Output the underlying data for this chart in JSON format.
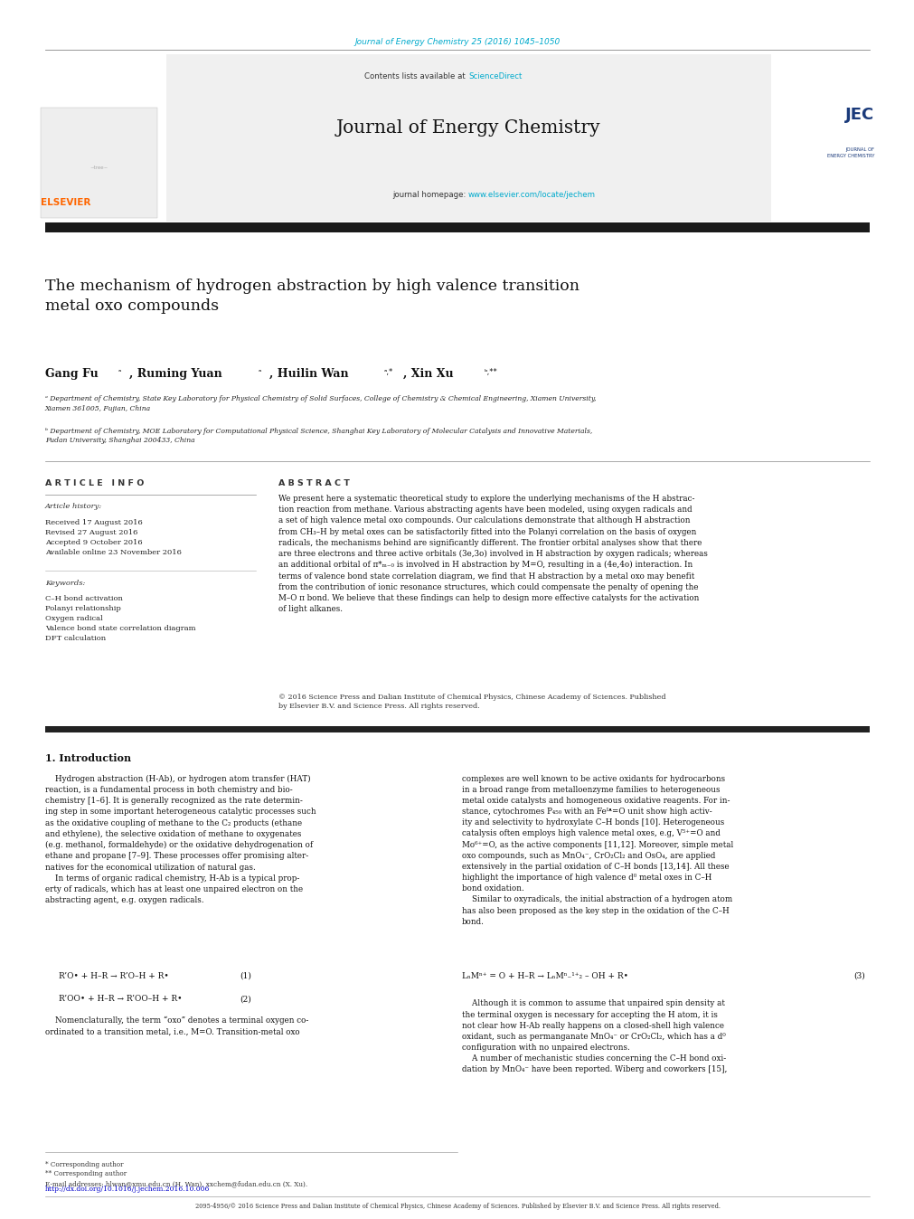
{
  "page_width": 9.92,
  "page_height": 13.23,
  "bg_color": "#ffffff",
  "top_journal_ref": "Journal of Energy Chemistry 25 (2016) 1045–1050",
  "top_journal_ref_color": "#00aacc",
  "contents_line": "Contents lists available at ",
  "science_direct": "ScienceDirect",
  "science_direct_color": "#00aacc",
  "journal_name": "Journal of Energy Chemistry",
  "journal_homepage_text": "journal homepage: ",
  "journal_homepage_url": "www.elsevier.com/locate/jechem",
  "journal_homepage_url_color": "#00aacc",
  "header_bg": "#f0f0f0",
  "title": "The mechanism of hydrogen abstraction by high valence transition\nmetal oxo compounds",
  "affil_a": "ᵃ Department of Chemistry, State Key Laboratory for Physical Chemistry of Solid Surfaces, College of Chemistry & Chemical Engineering, Xiamen University,\nXiamen 361005, Fujian, China",
  "affil_b": "ᵇ Department of Chemistry, MOE Laboratory for Computational Physical Science, Shanghai Key Laboratory of Molecular Catalysis and Innovative Materials,\nFudan University, Shanghai 200433, China",
  "section_article_info": "A R T I C L E   I N F O",
  "section_abstract": "A B S T R A C T",
  "article_history_label": "Article history:",
  "article_history": "Received 17 August 2016\nRevised 27 August 2016\nAccepted 9 October 2016\nAvailable online 23 November 2016",
  "keywords_label": "Keywords:",
  "keywords": "C–H bond activation\nPolanyi relationship\nOxygen radical\nValence bond state correlation diagram\nDFT calculation",
  "abstract_text": "We present here a systematic theoretical study to explore the underlying mechanisms of the H abstraction reaction from methane. Various abstracting agents have been modeled, using oxygen radicals and a set of high valence metal oxo compounds. Our calculations demonstrate that although H abstraction from CH₃–H by metal oxes can be satisfactorily fitted into the Polanyi correlation on the basis of oxygen radicals, the mechanisms behind are significantly different. The frontier orbital analyses show that there are three electrons and three active orbitals (3e,3o) involved in H abstraction by oxygen radicals; whereas an additional orbital of π*ₘ₋₀ is involved in H abstraction by M=O, resulting in a (4e,4o) interaction. In terms of valence bond state correlation diagram, we find that H abstraction by a metal oxo may benefit from the contribution of ionic resonance structures, which could compensate the penalty of opening the M–O π bond. We believe that these findings can help to design more effective catalysts for the activation of light alkanes.",
  "copyright": "© 2016 Science Press and Dalian Institute of Chemical Physics, Chinese Academy of Sciences. Published\nby Elsevier B.V. and Science Press. All rights reserved.",
  "intro_heading": "1. Introduction",
  "footer_corresponding": "* Corresponding author\n** Corresponding author\nE-mail addresses: hlwan@xmu.edu.cn (H. Wan), xxchem@fudan.edu.cn (X. Xu).",
  "footer_doi": "http://dx.doi.org/10.1016/j.jechem.2016.10.006",
  "footer_doi_color": "#0000cc",
  "footer_issn": "2095-4956/© 2016 Science Press and Dalian Institute of Chemical Physics, Chinese Academy of Sciences. Published by Elsevier B.V. and Science Press. All rights reserved.",
  "elsevier_color": "#ff6600",
  "thick_bar_color": "#1a1a1a"
}
